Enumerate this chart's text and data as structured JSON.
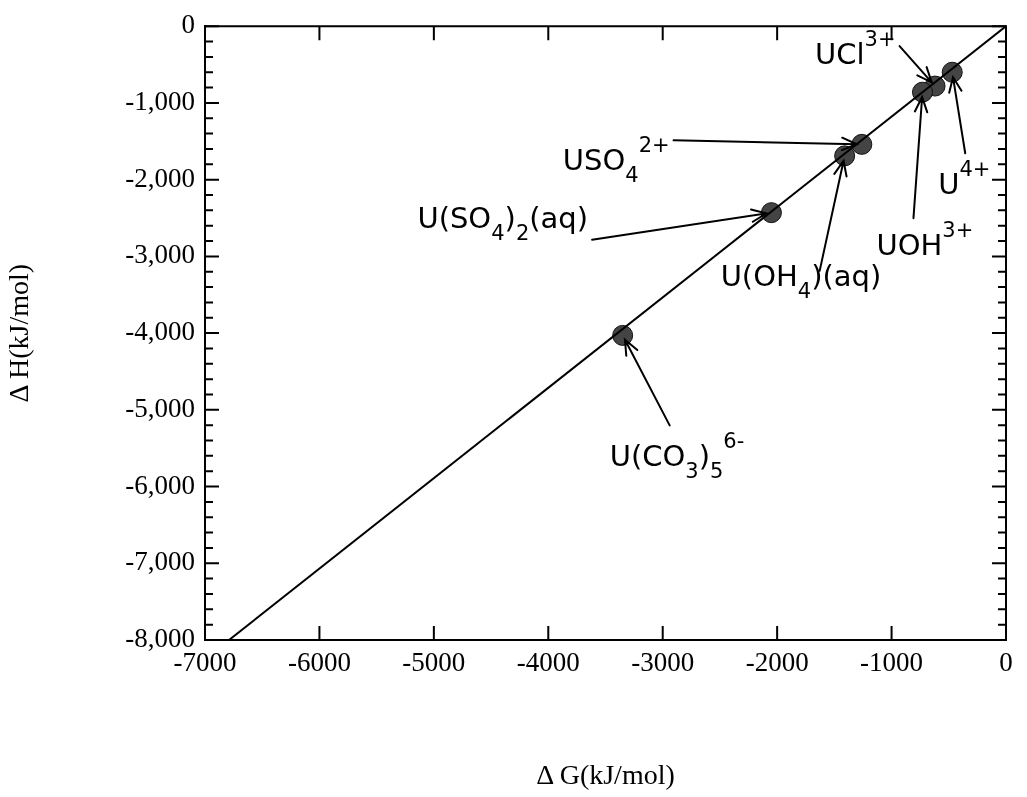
{
  "chart_data": {
    "type": "scatter",
    "xlabel": "Δ G(kJ/mol)",
    "ylabel": "Δ H(kJ/mol)",
    "xlim": [
      -7000,
      0
    ],
    "ylim": [
      -8000,
      0
    ],
    "grid": false,
    "legend": false,
    "marker": "circle",
    "xticks": [
      -7000,
      -6000,
      -5000,
      -4000,
      -3000,
      -2000,
      -1000,
      0
    ],
    "yticks": [
      {
        "value": -8000,
        "label": "-8,000"
      },
      {
        "value": -7800,
        "label": null
      },
      {
        "value": -7600,
        "label": null
      },
      {
        "value": -7400,
        "label": null
      },
      {
        "value": -7200,
        "label": null
      },
      {
        "value": -7000,
        "label": "-7,000"
      },
      {
        "value": -6800,
        "label": null
      },
      {
        "value": -6600,
        "label": null
      },
      {
        "value": -6400,
        "label": null
      },
      {
        "value": -6200,
        "label": null
      },
      {
        "value": -6000,
        "label": "-6,000"
      },
      {
        "value": -5800,
        "label": null
      },
      {
        "value": -5600,
        "label": null
      },
      {
        "value": -5400,
        "label": null
      },
      {
        "value": -5200,
        "label": null
      },
      {
        "value": -5000,
        "label": "-5,000"
      },
      {
        "value": -4800,
        "label": null
      },
      {
        "value": -4600,
        "label": null
      },
      {
        "value": -4400,
        "label": null
      },
      {
        "value": -4200,
        "label": null
      },
      {
        "value": -4000,
        "label": "-4,000"
      },
      {
        "value": -3800,
        "label": null
      },
      {
        "value": -3600,
        "label": null
      },
      {
        "value": -3400,
        "label": null
      },
      {
        "value": -3200,
        "label": null
      },
      {
        "value": -3000,
        "label": "-3,000"
      },
      {
        "value": -2800,
        "label": null
      },
      {
        "value": -2600,
        "label": null
      },
      {
        "value": -2400,
        "label": null
      },
      {
        "value": -2200,
        "label": null
      },
      {
        "value": -2000,
        "label": "-2,000"
      },
      {
        "value": -1800,
        "label": null
      },
      {
        "value": -1600,
        "label": null
      },
      {
        "value": -1400,
        "label": null
      },
      {
        "value": -1200,
        "label": null
      },
      {
        "value": -1000,
        "label": "-1,000"
      },
      {
        "value": -800,
        "label": null
      },
      {
        "value": -600,
        "label": null
      },
      {
        "value": -400,
        "label": null
      },
      {
        "value": -200,
        "label": null
      },
      0
    ],
    "series": [
      {
        "type": "line",
        "color": "#000000",
        "marker": "none",
        "x": [
          -6790,
          0
        ],
        "values": [
          -8000,
          0
        ]
      },
      {
        "type": "scatter",
        "color": "#444444",
        "x": [
          -470,
          -620,
          -730,
          -1260,
          -1410,
          -2050,
          -3350
        ],
        "values": [
          -600,
          -780,
          -860,
          -1540,
          -1690,
          -2430,
          -4030
        ]
      }
    ],
    "annotations": [
      {
        "text": "UCl$^{3+}$",
        "x": -620,
        "y": -780
      },
      {
        "text": "U$^{4+}$",
        "x": -470,
        "y": -600
      },
      {
        "text": "UOH$^{3+}$",
        "x": -730,
        "y": -860
      },
      {
        "text": "USO$_{4}$$^{2+}$",
        "x": -1260,
        "y": -1540
      },
      {
        "text": "U(OH$_{4}$)(aq)",
        "x": -1410,
        "y": -1690
      },
      {
        "text": "U(SO$_{4}$)$_{2}$(aq)",
        "x": -2050,
        "y": -2430
      },
      {
        "text": "U(CO$_{3}$)$_{5}$$^{6-}$",
        "x": -3350,
        "y": -4030
      }
    ]
  }
}
